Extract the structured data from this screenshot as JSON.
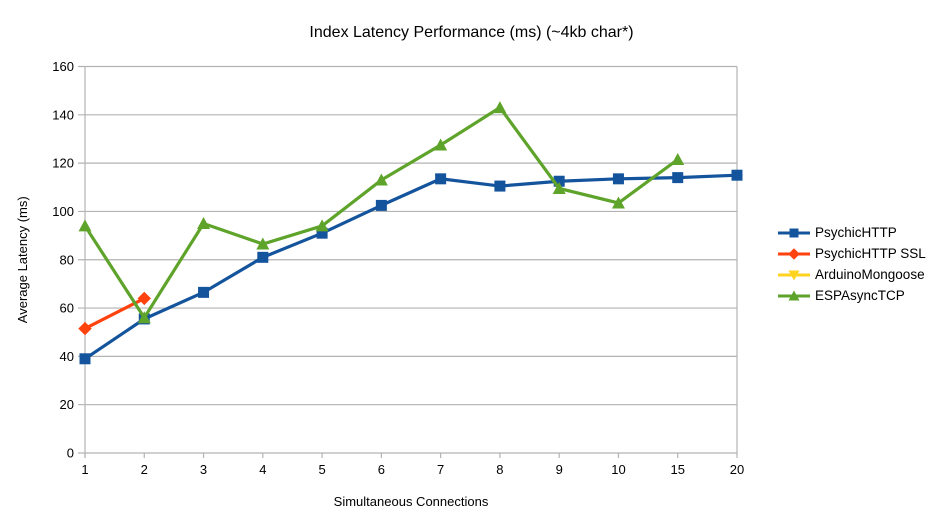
{
  "chart_data": {
    "type": "line",
    "title": "Index Latency Performance (ms) (~4kb char*)",
    "xlabel": "Simultaneous Connections",
    "ylabel": "Average Latency (ms)",
    "categories": [
      1,
      2,
      3,
      4,
      5,
      6,
      7,
      8,
      9,
      10,
      15,
      20
    ],
    "ylim": [
      0,
      160
    ],
    "y_ticks": [
      0,
      20,
      40,
      60,
      80,
      100,
      120,
      140,
      160
    ],
    "grid": "horizontal",
    "legend_position": "right",
    "background_color": "#ffffff",
    "grid_color": "#b3b3b3",
    "text_color": "#000000",
    "series": [
      {
        "name": "PsychicHTTP",
        "color": "#14549C",
        "marker": "square",
        "values": [
          39,
          55.5,
          66.5,
          81,
          91,
          102.5,
          113.5,
          110.5,
          112.5,
          113.5,
          114,
          115
        ]
      },
      {
        "name": "PsychicHTTP SSL",
        "color": "#FF420E",
        "marker": "diamond",
        "values": [
          51.5,
          64,
          null,
          null,
          null,
          null,
          null,
          null,
          null,
          null,
          null,
          null
        ]
      },
      {
        "name": "ArduinoMongoose",
        "color": "#FFD320",
        "marker": "triangle-down",
        "values": [
          null,
          null,
          null,
          null,
          null,
          null,
          null,
          null,
          null,
          null,
          null,
          null
        ]
      },
      {
        "name": "ESPAsyncTCP",
        "color": "#5EA32A",
        "marker": "triangle-up",
        "values": [
          94,
          56,
          95,
          86.5,
          94,
          113,
          127.5,
          143,
          109.5,
          103.5,
          121.5,
          null
        ]
      }
    ]
  }
}
